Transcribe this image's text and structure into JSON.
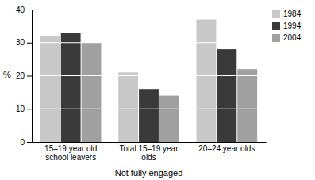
{
  "chart_data": {
    "type": "bar",
    "categories": [
      "15–19 year old school leavers",
      "Total 15–19 year olds",
      "20–24 year olds"
    ],
    "series": [
      {
        "name": "1984",
        "color": "#c8c8c8",
        "values": [
          32,
          21,
          37
        ]
      },
      {
        "name": "1994",
        "color": "#3a3a3a",
        "values": [
          33,
          16,
          28
        ]
      },
      {
        "name": "2004",
        "color": "#a0a0a0",
        "values": [
          30,
          14,
          22
        ]
      }
    ],
    "xlabel": "Not fully engaged",
    "ylabel": "%",
    "ylim": [
      0,
      40
    ],
    "yticks": [
      0,
      10,
      20,
      30,
      40
    ],
    "grid": true,
    "legend": "upper right"
  }
}
